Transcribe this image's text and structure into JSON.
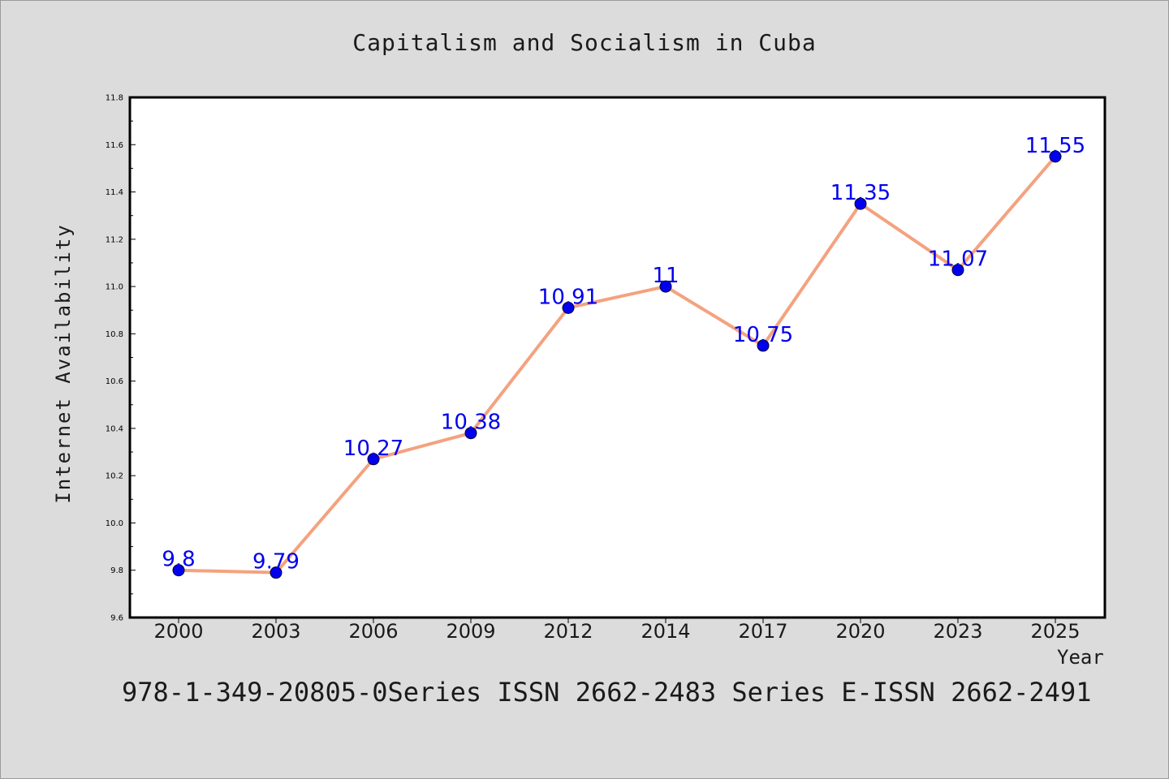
{
  "chart_data": {
    "type": "line",
    "title": "Capitalism and Socialism in Cuba",
    "xlabel": "Year",
    "ylabel": "Internet Availability",
    "categories": [
      "2000",
      "2003",
      "2006",
      "2009",
      "2012",
      "2014",
      "2017",
      "2020",
      "2023",
      "2025"
    ],
    "series": [
      {
        "values": [
          9.8,
          9.79,
          10.27,
          10.38,
          10.91,
          11,
          10.75,
          11.35,
          11.07,
          11.55
        ]
      }
    ],
    "data_labels": [
      "9.8",
      "9.79",
      "10.27",
      "10.38",
      "10.91",
      "11",
      "10.75",
      "11.35",
      "11.07",
      "11.55"
    ],
    "ylim": [
      9.6,
      11.8
    ],
    "y_ticks": [
      "9.6",
      "9.8",
      "10.0",
      "10.2",
      "10.4",
      "10.6",
      "10.8",
      "11.0",
      "11.2",
      "11.4",
      "11.6",
      "11.8"
    ],
    "grid": false,
    "line_color": "#f4a27f",
    "marker_color": "#0000ee",
    "label_color": "#0000ee"
  },
  "footer_text": "978-1-349-20805-0Series ISSN 2662-2483 Series E-ISSN 2662-2491"
}
